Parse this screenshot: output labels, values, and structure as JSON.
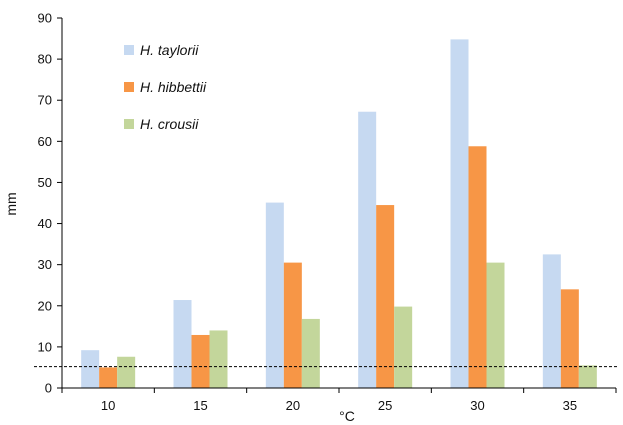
{
  "chart_data": {
    "type": "bar",
    "categories": [
      "10",
      "15",
      "20",
      "25",
      "30",
      "35"
    ],
    "series": [
      {
        "name": "H. taylorii",
        "color": "#c6d9f1",
        "values": [
          9.2,
          21.4,
          45.1,
          67.2,
          84.8,
          32.5
        ]
      },
      {
        "name": "H. hibbettii",
        "color": "#f79646",
        "values": [
          5.0,
          12.9,
          30.5,
          44.5,
          58.8,
          24.0
        ]
      },
      {
        "name": "H. crousii",
        "color": "#c3d69b",
        "values": [
          7.6,
          14.0,
          16.8,
          19.8,
          30.5,
          5.5
        ]
      }
    ],
    "xlabel": "°C",
    "ylabel": "mm",
    "ylim": [
      0,
      90
    ],
    "yticks": [
      "0",
      "10",
      "20",
      "30",
      "40",
      "50",
      "60",
      "70",
      "80",
      "90"
    ],
    "reference_line": {
      "value": 5.2,
      "style": "dashed"
    },
    "grid": false,
    "legend_position": "top-left"
  }
}
